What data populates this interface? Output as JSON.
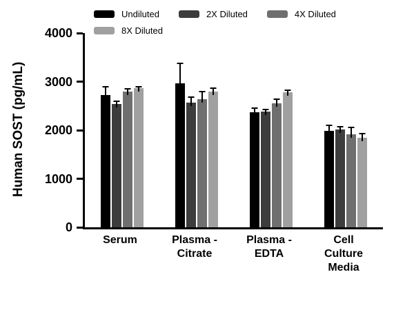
{
  "chart_data": {
    "type": "bar",
    "title": "",
    "ylabel": "Human SOST (pg/mL)",
    "xlabel": "",
    "ylim": [
      0,
      4000
    ],
    "yticks": [
      0,
      1000,
      2000,
      3000,
      4000
    ],
    "grid": false,
    "legend_position": "top",
    "categories": [
      "Serum",
      "Plasma - Citrate",
      "Plasma - EDTA",
      "Cell Culture Media"
    ],
    "category_label_lines": [
      [
        "Serum"
      ],
      [
        "Plasma -",
        "Citrate"
      ],
      [
        "Plasma -",
        "EDTA"
      ],
      [
        "Cell",
        "Culture",
        "Media"
      ]
    ],
    "series": [
      {
        "name": "Undiluted",
        "color": "#000000",
        "values": [
          2730,
          2970,
          2370,
          1990
        ],
        "errors": [
          170,
          400,
          80,
          110
        ]
      },
      {
        "name": "2X Diluted",
        "color": "#3d3d3d",
        "values": [
          2540,
          2570,
          2390,
          2010
        ],
        "errors": [
          60,
          110,
          30,
          60
        ]
      },
      {
        "name": "4X Diluted",
        "color": "#6f6f6f",
        "values": [
          2800,
          2640,
          2550,
          1920
        ],
        "errors": [
          50,
          160,
          90,
          130
        ]
      },
      {
        "name": "8X Diluted",
        "color": "#a0a0a0",
        "values": [
          2870,
          2790,
          2780,
          1840
        ],
        "errors": [
          30,
          70,
          50,
          90
        ]
      }
    ]
  }
}
